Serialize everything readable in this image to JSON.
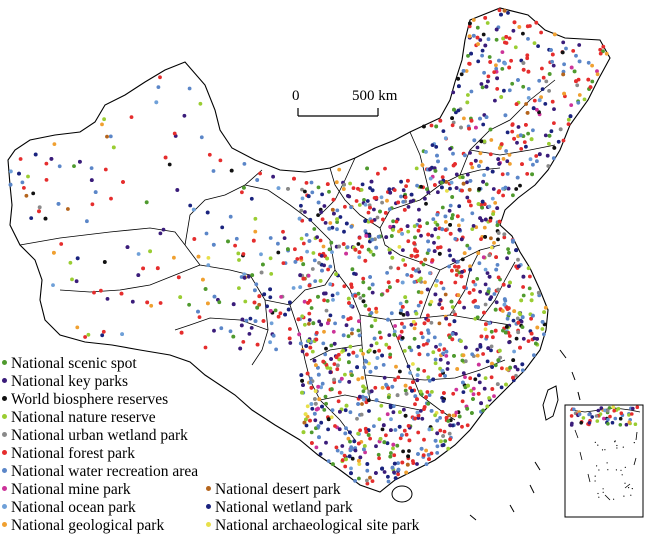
{
  "scale_bar": {
    "zero_label": "0",
    "end_label": "500 km"
  },
  "legend": [
    {
      "label": "National scenic spot",
      "color": "#4f9a2e"
    },
    {
      "label": "National key parks",
      "color": "#3a1c7a"
    },
    {
      "label": "World biosphere reserves",
      "color": "#111111"
    },
    {
      "label": "National nature reserve",
      "color": "#9acd32"
    },
    {
      "label": "National urban wetland park",
      "color": "#8a8a8a"
    },
    {
      "label": "National forest park",
      "color": "#e52d2d"
    },
    {
      "label": "National water recreation area",
      "color": "#5b86c8"
    },
    {
      "label": "National mine park",
      "color": "#cc3399"
    },
    {
      "label": "National ocean park",
      "color": "#6fa0d8"
    },
    {
      "label": "National geological park",
      "color": "#f0a030"
    },
    {
      "label": "National desert park",
      "color": "#b5651d"
    },
    {
      "label": "National wetland park",
      "color": "#1a237e"
    },
    {
      "label": "National archaeological site park",
      "color": "#e8e04a"
    }
  ]
}
